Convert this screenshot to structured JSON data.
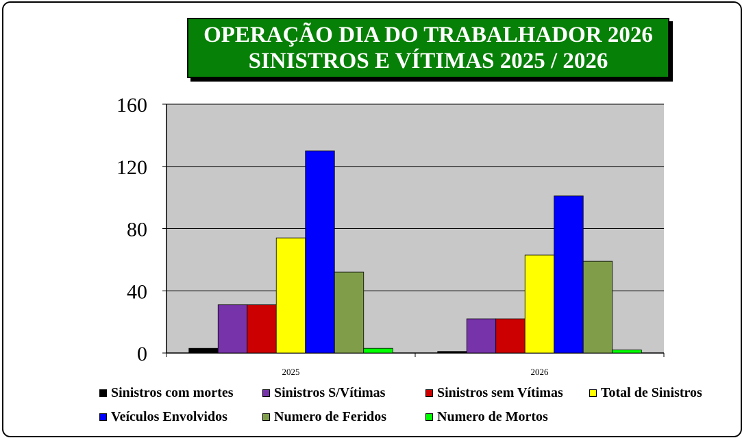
{
  "title": {
    "line1": "OPERAÇÃO DIA DO TRABALHADOR 2026",
    "line2": "SINISTROS  E VÍTIMAS  2025 / 2026"
  },
  "chart_data": {
    "type": "bar",
    "title": "OPERAÇÃO DIA DO TRABALHADOR 2026 / SINISTROS E VÍTIMAS 2025 / 2026",
    "categories": [
      "2025",
      "2026"
    ],
    "ylim": [
      0,
      160
    ],
    "yticks": [
      "0",
      "40",
      "80",
      "120",
      "160"
    ],
    "grid": true,
    "legend_position": "bottom",
    "series": [
      {
        "name": "Sinistros com mortes",
        "color": "#000000",
        "values": [
          3,
          1
        ]
      },
      {
        "name": "Sinistros S/Vítimas",
        "color": "#7733AA",
        "values": [
          31,
          22
        ]
      },
      {
        "name": "Sinistros sem Vítimas",
        "color": "#CC0000",
        "values": [
          31,
          22
        ]
      },
      {
        "name": "Total de Sinistros",
        "color": "#FFFF00",
        "values": [
          74,
          63
        ]
      },
      {
        "name": "Veículos Envolvidos",
        "color": "#0000FF",
        "values": [
          130,
          101
        ]
      },
      {
        "name": "Numero de Feridos",
        "color": "#809E4A",
        "values": [
          52,
          59
        ]
      },
      {
        "name": "Numero de Mortos",
        "color": "#00FF00",
        "values": [
          3,
          2
        ]
      }
    ]
  }
}
